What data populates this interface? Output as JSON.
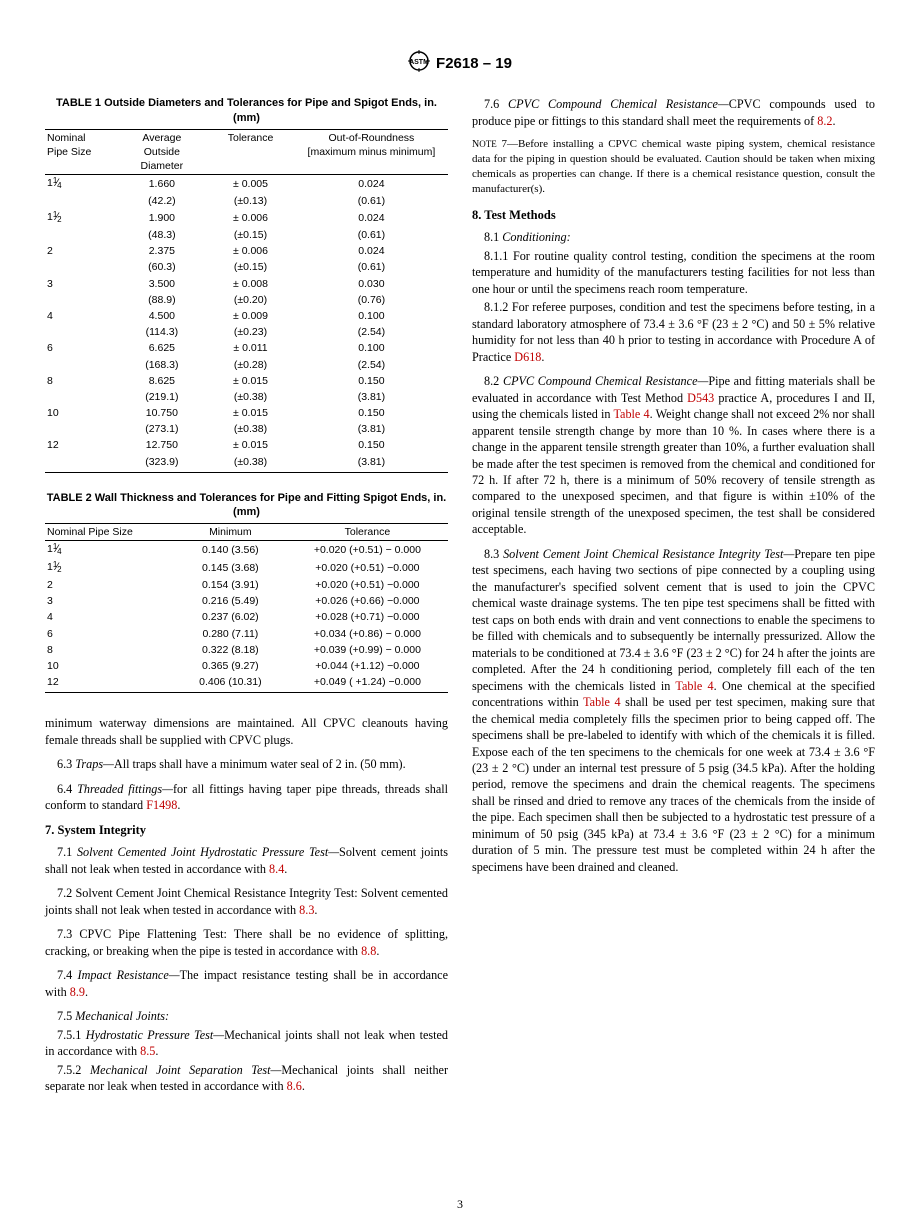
{
  "header": {
    "designation": "F2618 – 19"
  },
  "table1": {
    "title": "TABLE 1 Outside Diameters and Tolerances for Pipe and Spigot Ends, in. (mm)",
    "headers": [
      "Nominal Pipe Size",
      "Average Outside Diameter",
      "Tolerance",
      "Out-of-Roundness [maximum minus minimum]"
    ],
    "rows": [
      [
        "1¼",
        "1.660",
        "± 0.005",
        "0.024",
        "(42.2)",
        "(±0.13)",
        "(0.61)"
      ],
      [
        "1½",
        "1.900",
        "± 0.006",
        "0.024",
        "(48.3)",
        "(±0.15)",
        "(0.61)"
      ],
      [
        "2",
        "2.375",
        "± 0.006",
        "0.024",
        "(60.3)",
        "(±0.15)",
        "(0.61)"
      ],
      [
        "3",
        "3.500",
        "± 0.008",
        "0.030",
        "(88.9)",
        "(±0.20)",
        "(0.76)"
      ],
      [
        "4",
        "4.500",
        "± 0.009",
        "0.100",
        "(114.3)",
        "(±0.23)",
        "(2.54)"
      ],
      [
        "6",
        "6.625",
        "± 0.011",
        "0.100",
        "(168.3)",
        "(±0.28)",
        "(2.54)"
      ],
      [
        "8",
        "8.625",
        "± 0.015",
        "0.150",
        "(219.1)",
        "(±0.38)",
        "(3.81)"
      ],
      [
        "10",
        "10.750",
        "± 0.015",
        "0.150",
        "(273.1)",
        "(±0.38)",
        "(3.81)"
      ],
      [
        "12",
        "12.750",
        "± 0.015",
        "0.150",
        "(323.9)",
        "(±0.38)",
        "(3.81)"
      ]
    ]
  },
  "table2": {
    "title": "TABLE 2 Wall Thickness and Tolerances for Pipe and Fitting Spigot Ends, in. (mm)",
    "headers": [
      "Nominal Pipe Size",
      "Minimum",
      "Tolerance"
    ],
    "rows": [
      [
        "1¼",
        "0.140 (3.56)",
        "+0.020 (+0.51) − 0.000"
      ],
      [
        "1½",
        "0.145 (3.68)",
        "+0.020 (+0.51) −0.000"
      ],
      [
        "2",
        "0.154 (3.91)",
        "+0.020 (+0.51) −0.000"
      ],
      [
        "3",
        "0.216 (5.49)",
        "+0.026 (+0.66) −0.000"
      ],
      [
        "4",
        "0.237 (6.02)",
        "+0.028 (+0.71) −0.000"
      ],
      [
        "6",
        "0.280 (7.11)",
        "+0.034 (+0.86) − 0.000"
      ],
      [
        "8",
        "0.322 (8.18)",
        "+0.039 (+0.99) − 0.000"
      ],
      [
        "10",
        "0.365 (9.27)",
        "+0.044 (+1.12) −0.000"
      ],
      [
        "12",
        "0.406 (10.31)",
        "+0.049 ( +1.24) −0.000"
      ]
    ]
  },
  "left": {
    "p1": "minimum waterway dimensions are maintained. All CPVC cleanouts having female threads shall be supplied with CPVC plugs.",
    "p63_lead": "6.3 ",
    "p63_i": "Traps—",
    "p63_body": "All traps shall have a minimum water seal of 2 in. (50 mm).",
    "p64_lead": "6.4 ",
    "p64_i": "Threaded fittings—",
    "p64_body": "for all fittings having taper pipe threads, threads shall conform to standard ",
    "p64_link": "F1498",
    "p64_end": ".",
    "h7": "7. System Integrity",
    "p71_lead": "7.1 ",
    "p71_i": "Solvent Cemented Joint Hydrostatic Pressure Test—",
    "p71_body": "Solvent cement joints shall not leak when tested in accordance with ",
    "p71_link": "8.4",
    "p71_end": ".",
    "p72_lead": "7.2 ",
    "p72_body": "Solvent Cement Joint Chemical Resistance Integrity Test: Solvent cemented joints shall not leak when tested in accordance with ",
    "p72_link": "8.3",
    "p72_end": ".",
    "p73_lead": "7.3 ",
    "p73_body": "CPVC Pipe Flattening Test: There shall be no evidence of splitting, cracking, or breaking when the pipe is tested in accordance with ",
    "p73_link": "8.8",
    "p73_end": ".",
    "p74_lead": "7.4 ",
    "p74_i": "Impact Resistance—",
    "p74_body": "The impact resistance testing shall be in accordance with ",
    "p74_link": "8.9",
    "p74_end": ".",
    "p75_lead": "7.5 ",
    "p75_i": "Mechanical Joints:",
    "p751_lead": "7.5.1 ",
    "p751_i": "Hydrostatic Pressure Test—",
    "p751_body": "Mechanical joints shall not leak when tested in accordance with ",
    "p751_link": "8.5",
    "p751_end": ".",
    "p752_lead": "7.5.2 ",
    "p752_i": "Mechanical Joint Separation Test—",
    "p752_body": "Mechanical joints shall neither separate nor leak when tested in accordance with ",
    "p752_link": "8.6",
    "p752_end": "."
  },
  "right": {
    "p76_lead": "7.6 ",
    "p76_i": "CPVC Compound Chemical Resistance—",
    "p76_body": "CPVC compounds used to produce pipe or fittings to this standard shall meet the requirements of ",
    "p76_link": "8.2",
    "p76_end": ".",
    "note7_lead": "Nᴏᴛᴇ 7—",
    "note7": "Before installing a CPVC chemical waste piping system, chemical resistance data for the piping in question should be evaluated. Caution should be taken when mixing chemicals as properties can change. If there is a chemical resistance question, consult the manufacturer(s).",
    "h8": "8. Test Methods",
    "p81_lead": "8.1 ",
    "p81_i": "Conditioning:",
    "p811_lead": "8.1.1 ",
    "p811_body": "For routine quality control testing, condition the specimens at the room temperature and humidity of the manufacturers testing facilities for not less than one hour or until the specimens reach room temperature.",
    "p812_lead": "8.1.2 ",
    "p812_body1": "For referee purposes, condition and test the specimens before testing, in a standard laboratory atmosphere of 73.4 ± 3.6 °F (23 ± 2 °C) and 50 ± 5% relative humidity for not less than 40 h prior to testing in accordance with Procedure A of Practice ",
    "p812_link": "D618",
    "p812_end": ".",
    "p82_lead": "8.2 ",
    "p82_i": "CPVC Compound Chemical Resistance—",
    "p82_b1": "Pipe and fitting materials shall be evaluated in accordance with Test Method ",
    "p82_link1": "D543",
    "p82_b2": " practice A, procedures I and II, using the chemicals listed in ",
    "p82_link2": "Table 4",
    "p82_b3": ". Weight change shall not exceed 2% nor shall apparent tensile strength change by more than 10 %. In cases where there is a change in the apparent tensile strength greater than 10%, a further evaluation shall be made after the test specimen is removed from the chemical and conditioned for 72 h. If after 72 h, there is a minimum of 50% recovery of tensile strength as compared to the unexposed specimen, and that figure is within ±10% of the original tensile strength of the unexposed specimen, the test shall be considered acceptable.",
    "p83_lead": "8.3 ",
    "p83_i": "Solvent Cement Joint Chemical Resistance Integrity Test—",
    "p83_b1": "Prepare ten pipe test specimens, each having two sections of pipe connected by a coupling using the manufacturer's specified solvent cement that is used to join the CPVC chemical waste drainage systems. The ten pipe test specimens shall be fitted with test caps on both ends with drain and vent connections to enable the specimens to be filled with chemicals and to subsequently be internally pressurized. Allow the materials to be conditioned at 73.4 ± 3.6 °F (23 ± 2 °C) for 24 h after the joints are completed. After the 24 h conditioning period, completely fill each of the ten specimens with the chemicals listed in ",
    "p83_link1": "Table 4",
    "p83_b2": ". One chemical at the specified concentrations within ",
    "p83_link2": "Table 4",
    "p83_b3": " shall be used per test specimen, making sure that the chemical media completely fills the specimen prior to being capped off. The specimens shall be pre-labeled to identify with which of the chemicals it is filled. Expose each of the ten specimens to the chemicals for one week at 73.4 ± 3.6 °F (23 ± 2 °C) under an internal test pressure of 5 psig (34.5 kPa). After the holding period, remove the specimens and drain the chemical reagents. The specimens shall be rinsed and dried to remove any traces of the chemicals from the inside of the pipe. Each specimen shall then be subjected to a hydrostatic test pressure of a minimum of 50 psig (345 kPa) at 73.4 ± 3.6 °F (23 ± 2 °C) for a minimum duration of 5 min. The pressure test must be completed within 24 h after the specimens have been drained and cleaned."
  },
  "pagenum": "3"
}
